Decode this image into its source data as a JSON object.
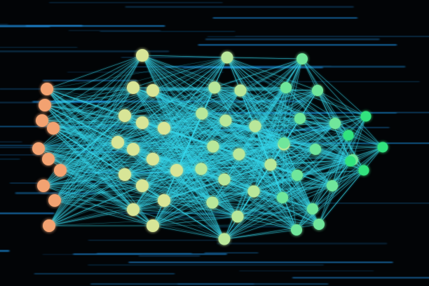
{
  "image": {
    "subject": "neural-network-graph",
    "background_color": "#020406",
    "streak_color": "#1e8fe0",
    "edge_color": "#35d4e8",
    "node_color_input": "#f3a271",
    "node_color_hidden": "#d8e597",
    "node_color_output": "#32e37e",
    "layers": [
      {
        "name": "input",
        "node_count": 10
      },
      {
        "name": "hidden-1",
        "node_count": 15
      },
      {
        "name": "hidden-2",
        "node_count": 16
      },
      {
        "name": "hidden-3",
        "node_count": 14
      },
      {
        "name": "output",
        "node_count": 5
      }
    ]
  }
}
